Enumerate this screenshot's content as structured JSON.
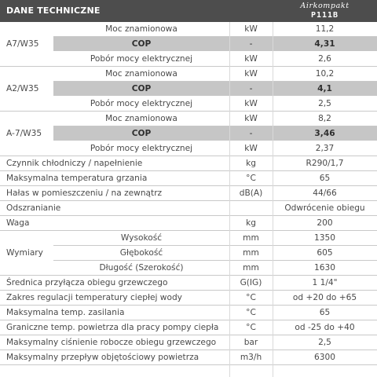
{
  "header": {
    "title": "DANE TECHNICZNE",
    "brand": "Airkompakt",
    "model": "P111B"
  },
  "groups": [
    {
      "label": "A7/W35",
      "rows": [
        {
          "param": "Moc znamionowa",
          "unit": "kW",
          "value": "11,2"
        },
        {
          "param": "COP",
          "unit": "-",
          "value": "4,31",
          "highlight": true
        },
        {
          "param": "Pobór mocy elektrycznej",
          "unit": "kW",
          "value": "2,6"
        }
      ]
    },
    {
      "label": "A2/W35",
      "rows": [
        {
          "param": "Moc znamionowa",
          "unit": "kW",
          "value": "10,2"
        },
        {
          "param": "COP",
          "unit": "-",
          "value": "4,1",
          "highlight": true
        },
        {
          "param": "Pobór mocy elektrycznej",
          "unit": "kW",
          "value": "2,5"
        }
      ]
    },
    {
      "label": "A-7/W35",
      "rows": [
        {
          "param": "Moc znamionowa",
          "unit": "kW",
          "value": "8,2"
        },
        {
          "param": "COP",
          "unit": "-",
          "value": "3,46",
          "highlight": true
        },
        {
          "param": "Pobór mocy elektrycznej",
          "unit": "kW",
          "value": "2,37"
        }
      ]
    }
  ],
  "specs_a": [
    {
      "param": "Czynnik chłodniczy / napełnienie",
      "unit": "kg",
      "value": "R290/1,7"
    },
    {
      "param": "Maksymalna temperatura grzania",
      "unit": "°C",
      "value": "65"
    },
    {
      "param": "Hałas w pomieszczeniu / na zewnątrz",
      "unit": "dB(A)",
      "value": "44/66"
    },
    {
      "param": "Odszranianie",
      "unit": "",
      "value": "Odwrócenie obiegu"
    },
    {
      "param": "Waga",
      "unit": "kg",
      "value": "200"
    }
  ],
  "dimensions": {
    "label": "Wymiary",
    "rows": [
      {
        "param": "Wysokość",
        "unit": "mm",
        "value": "1350"
      },
      {
        "param": "Głębokość",
        "unit": "mm",
        "value": "605"
      },
      {
        "param": "Długość (Szerokość)",
        "unit": "mm",
        "value": "1630"
      }
    ]
  },
  "specs_b": [
    {
      "param": "Średnica przyłącza  obiegu grzewczego",
      "unit": "G(IG)",
      "value": "1 1/4\""
    },
    {
      "param": "Zakres regulacji temperatury ciepłej wody",
      "unit": "°C",
      "value": "od +20 do +65"
    },
    {
      "param": "Maksymalna temp. zasilania",
      "unit": "°C",
      "value": "65"
    },
    {
      "param": "Graniczne temp. powietrza dla pracy pompy ciepła",
      "unit": "°C",
      "value": "od -25 do +40"
    },
    {
      "param": "Maksymalny ciśnienie robocze obiegu grzewczego",
      "unit": "bar",
      "value": "2,5"
    },
    {
      "param": "Maksymalny przepływ objętościowy powietrza",
      "unit": "m3/h",
      "value": "6300"
    }
  ]
}
